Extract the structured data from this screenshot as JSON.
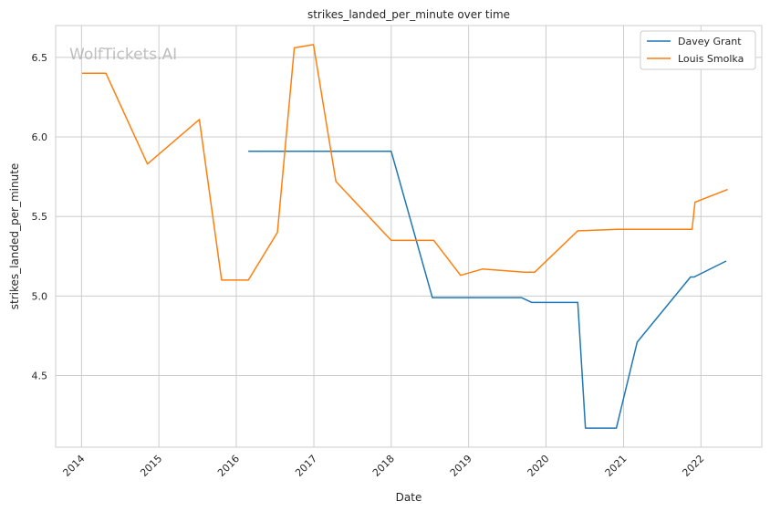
{
  "watermark": "WolfTickets.AI",
  "chart_data": {
    "type": "line",
    "title": "strikes_landed_per_minute over time",
    "xlabel": "Date",
    "ylabel": "strikes_landed_per_minute",
    "x_ticks": [
      "2014",
      "2015",
      "2016",
      "2017",
      "2018",
      "2019",
      "2020",
      "2021",
      "2022"
    ],
    "y_ticks": [
      "4.5",
      "5.0",
      "5.5",
      "6.0",
      "6.5"
    ],
    "xlim": [
      "2013-09-01",
      "2022-10-15"
    ],
    "ylim": [
      4.05,
      6.7
    ],
    "grid": true,
    "legend_position": "top-right",
    "series": [
      {
        "name": "Davey Grant",
        "color": "#1f77b4",
        "points": [
          [
            "2016-02-27",
            5.91
          ],
          [
            "2018-01-01",
            5.91
          ],
          [
            "2018-07-14",
            4.99
          ],
          [
            "2019-09-07",
            4.99
          ],
          [
            "2019-10-26",
            4.96
          ],
          [
            "2020-05-30",
            4.96
          ],
          [
            "2020-07-05",
            4.17
          ],
          [
            "2020-11-28",
            4.17
          ],
          [
            "2021-03-06",
            4.71
          ],
          [
            "2021-11-13",
            5.12
          ],
          [
            "2021-11-30",
            5.12
          ],
          [
            "2022-04-30",
            5.22
          ]
        ]
      },
      {
        "name": "Louis Smolka",
        "color": "#ff7f0e",
        "points": [
          [
            "2014-01-04",
            6.4
          ],
          [
            "2014-04-26",
            6.4
          ],
          [
            "2014-11-08",
            5.83
          ],
          [
            "2015-07-11",
            6.11
          ],
          [
            "2015-10-24",
            5.1
          ],
          [
            "2016-02-27",
            5.1
          ],
          [
            "2016-07-13",
            5.4
          ],
          [
            "2016-10-01",
            6.56
          ],
          [
            "2016-12-30",
            6.58
          ],
          [
            "2017-04-15",
            5.72
          ],
          [
            "2018-01-01",
            5.35
          ],
          [
            "2018-07-21",
            5.35
          ],
          [
            "2018-11-24",
            5.13
          ],
          [
            "2019-03-09",
            5.17
          ],
          [
            "2019-09-21",
            5.15
          ],
          [
            "2019-11-09",
            5.15
          ],
          [
            "2020-05-30",
            5.41
          ],
          [
            "2020-12-05",
            5.42
          ],
          [
            "2021-11-20",
            5.42
          ],
          [
            "2021-12-04",
            5.59
          ],
          [
            "2022-05-07",
            5.67
          ]
        ]
      }
    ]
  }
}
